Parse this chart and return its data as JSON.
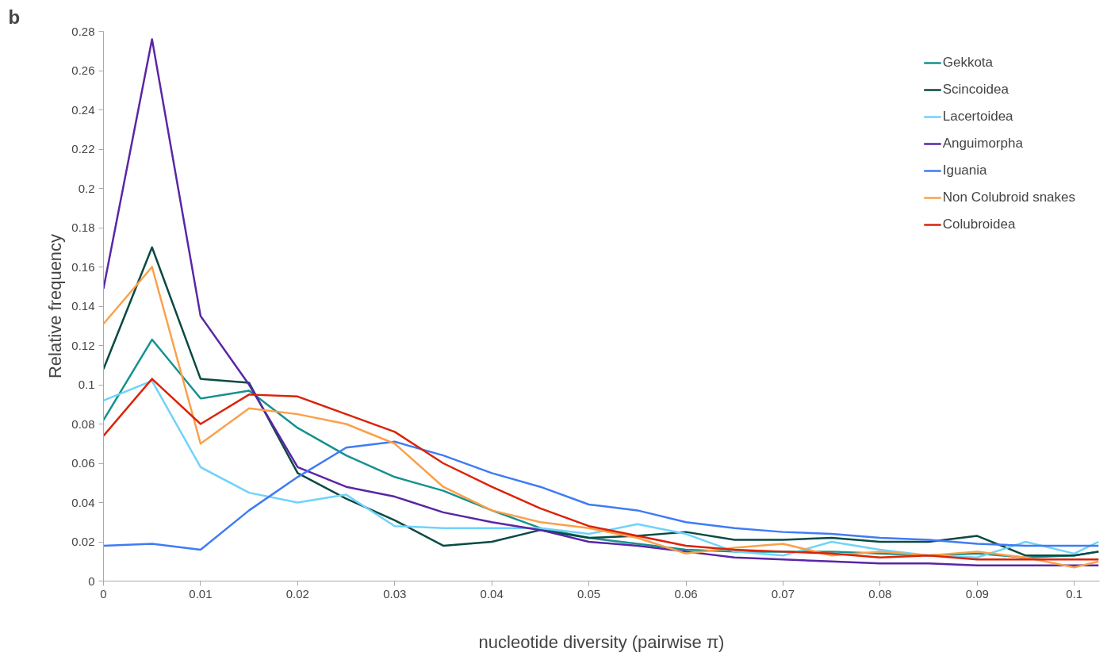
{
  "chart_data": {
    "type": "line",
    "xlabel": "nucleotide diversity (pairwise π)",
    "ylabel": "Relative frequency",
    "annotations": [
      "b"
    ],
    "x": [
      0,
      0.005,
      0.01,
      0.015,
      0.02,
      0.025,
      0.03,
      0.035,
      0.04,
      0.045,
      0.05,
      0.055,
      0.06,
      0.065,
      0.07,
      0.075,
      0.08,
      0.085,
      0.09,
      0.095,
      0.1,
      0.1025
    ],
    "xlim": [
      0,
      0.1026
    ],
    "ylim": [
      0,
      0.28
    ],
    "xticks": [
      0,
      0.01,
      0.02,
      0.03,
      0.04,
      0.05,
      0.06,
      0.07,
      0.08,
      0.09,
      0.1
    ],
    "yticks": [
      0,
      0.02,
      0.04,
      0.06,
      0.08,
      0.1,
      0.12,
      0.14,
      0.16,
      0.18,
      0.2,
      0.22,
      0.24,
      0.26,
      0.28
    ],
    "grid": false,
    "legend": "top right",
    "marker": "none",
    "line_style": "solid",
    "series": [
      {
        "name": "Gekkota",
        "color": "#16918f",
        "values": [
          0.082,
          0.123,
          0.093,
          0.097,
          0.078,
          0.064,
          0.053,
          0.046,
          0.036,
          0.027,
          0.022,
          0.019,
          0.016,
          0.015,
          0.015,
          0.015,
          0.014,
          0.013,
          0.014,
          0.012,
          0.013,
          0.015
        ]
      },
      {
        "name": "Scincoidea",
        "color": "#0b4a44",
        "values": [
          0.108,
          0.17,
          0.103,
          0.101,
          0.055,
          0.042,
          0.031,
          0.018,
          0.02,
          0.026,
          0.022,
          0.023,
          0.025,
          0.021,
          0.021,
          0.022,
          0.02,
          0.02,
          0.023,
          0.013,
          0.013,
          0.015
        ]
      },
      {
        "name": "Lacertoidea",
        "color": "#6fd3fb",
        "values": [
          0.092,
          0.102,
          0.058,
          0.045,
          0.04,
          0.044,
          0.028,
          0.027,
          0.027,
          0.027,
          0.024,
          0.029,
          0.024,
          0.015,
          0.013,
          0.02,
          0.016,
          0.013,
          0.012,
          0.02,
          0.014,
          0.02
        ]
      },
      {
        "name": "Anguimorpha",
        "color": "#5a26a6",
        "values": [
          0.149,
          0.276,
          0.135,
          0.1,
          0.058,
          0.048,
          0.043,
          0.035,
          0.03,
          0.026,
          0.02,
          0.018,
          0.015,
          0.012,
          0.011,
          0.01,
          0.009,
          0.009,
          0.008,
          0.008,
          0.008,
          0.008
        ]
      },
      {
        "name": "Iguania",
        "color": "#3f7bf6",
        "values": [
          0.018,
          0.019,
          0.016,
          0.036,
          0.053,
          0.068,
          0.071,
          0.064,
          0.055,
          0.048,
          0.039,
          0.036,
          0.03,
          0.027,
          0.025,
          0.024,
          0.022,
          0.021,
          0.019,
          0.018,
          0.018,
          0.018
        ]
      },
      {
        "name": "Non Colubroid snakes",
        "color": "#fba04a",
        "values": [
          0.131,
          0.16,
          0.07,
          0.088,
          0.085,
          0.08,
          0.07,
          0.048,
          0.036,
          0.03,
          0.027,
          0.022,
          0.014,
          0.017,
          0.019,
          0.013,
          0.015,
          0.013,
          0.015,
          0.012,
          0.007,
          0.01
        ]
      },
      {
        "name": "Colubroidea",
        "color": "#dc2208",
        "values": [
          0.074,
          0.103,
          0.08,
          0.095,
          0.094,
          0.085,
          0.076,
          0.06,
          0.048,
          0.037,
          0.028,
          0.023,
          0.018,
          0.016,
          0.015,
          0.014,
          0.012,
          0.013,
          0.011,
          0.011,
          0.011,
          0.011
        ]
      }
    ]
  }
}
